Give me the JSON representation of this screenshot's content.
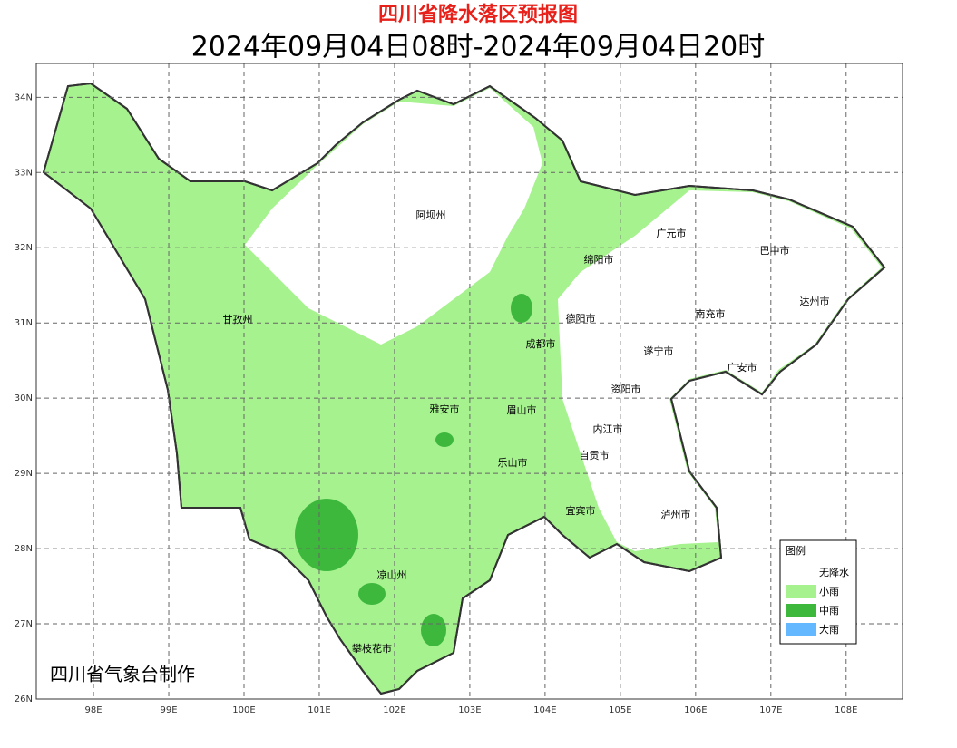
{
  "title": "四川省降水落区预报图",
  "subtitle": "2024年09月04日08时-2024年09月04日20时",
  "credit": "四川省气象台制作",
  "map": {
    "xlim": [
      97.24,
      108.75
    ],
    "ylim": [
      26,
      34.45
    ],
    "xticks": [
      {
        "value": 98,
        "label": "98E"
      },
      {
        "value": 99,
        "label": "99E"
      },
      {
        "value": 100,
        "label": "100E"
      },
      {
        "value": 101,
        "label": "101E"
      },
      {
        "value": 102,
        "label": "102E"
      },
      {
        "value": 103,
        "label": "103E"
      },
      {
        "value": 104,
        "label": "104E"
      },
      {
        "value": 105,
        "label": "105E"
      },
      {
        "value": 106,
        "label": "106E"
      },
      {
        "value": 107,
        "label": "107E"
      },
      {
        "value": 108,
        "label": "108E"
      }
    ],
    "yticks": [
      {
        "value": 26,
        "label": "26N"
      },
      {
        "value": 27,
        "label": "27N"
      },
      {
        "value": 28,
        "label": "28N"
      },
      {
        "value": 29,
        "label": "29N"
      },
      {
        "value": 30,
        "label": "30N"
      },
      {
        "value": 31,
        "label": "31N"
      },
      {
        "value": 32,
        "label": "32N"
      },
      {
        "value": 33,
        "label": "33N"
      },
      {
        "value": 34,
        "label": "34N"
      }
    ],
    "cities": [
      "阿坝州",
      "广元市",
      "巴中市",
      "绵阳市",
      "甘孜州",
      "德阳市",
      "南充市",
      "达州市",
      "成都市",
      "遂宁市",
      "广安市",
      "资阳市",
      "雅安市",
      "眉山市",
      "内江市",
      "自贡市",
      "乐山市",
      "宜宾市",
      "泸州市",
      "凉山州",
      "攀枝花市"
    ]
  },
  "legend": {
    "title": "图例",
    "items": [
      {
        "name": "无降水",
        "color": "#ffffff"
      },
      {
        "name": "小雨",
        "color": "#a6f28f"
      },
      {
        "name": "中雨",
        "color": "#3db83d"
      },
      {
        "name": "大雨",
        "color": "#63b8ff"
      }
    ]
  }
}
